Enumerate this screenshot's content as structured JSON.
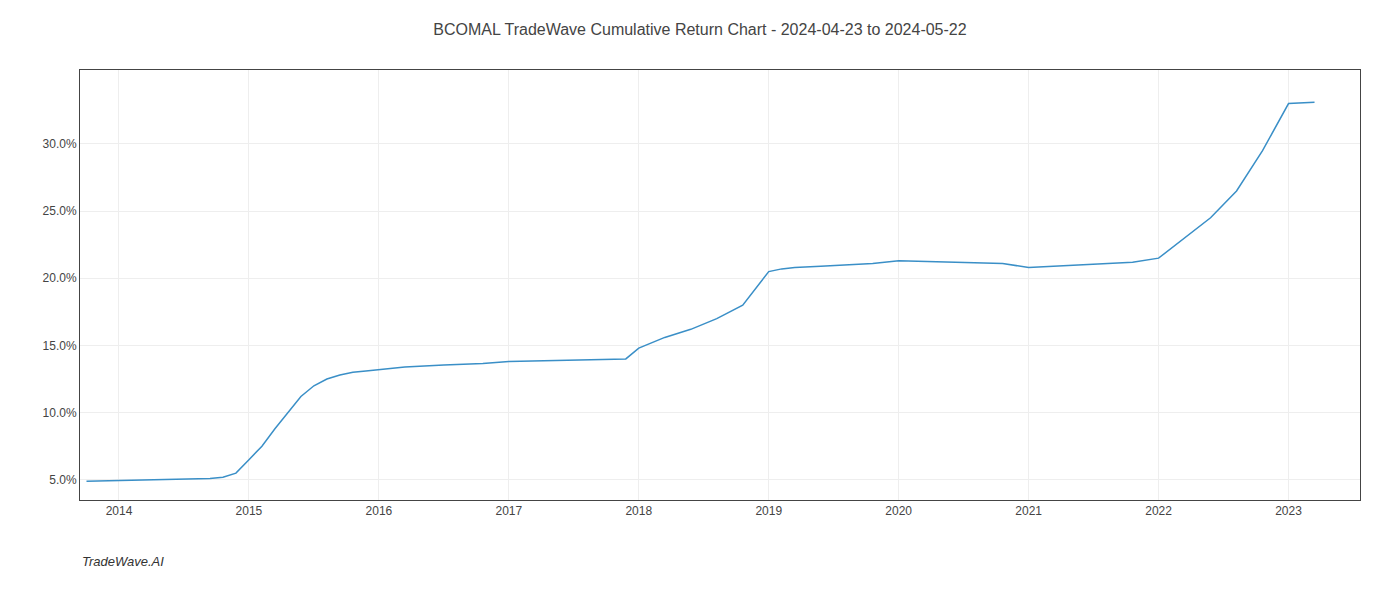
{
  "chart_data": {
    "type": "line",
    "title": "BCOMAL TradeWave Cumulative Return Chart - 2024-04-23 to 2024-05-22",
    "annotations": [
      "TradeWave.AI"
    ],
    "x": [
      2013.75,
      2014.0,
      2014.1,
      2014.2,
      2014.3,
      2014.4,
      2014.5,
      2014.6,
      2014.7,
      2014.8,
      2014.9,
      2015.0,
      2015.1,
      2015.2,
      2015.3,
      2015.4,
      2015.5,
      2015.6,
      2015.7,
      2015.8,
      2015.9,
      2016.0,
      2016.1,
      2016.2,
      2016.5,
      2016.8,
      2017.0,
      2017.3,
      2017.6,
      2017.9,
      2018.0,
      2018.1,
      2018.2,
      2018.4,
      2018.6,
      2018.8,
      2019.0,
      2019.1,
      2019.2,
      2019.4,
      2019.6,
      2019.8,
      2020.0,
      2020.2,
      2020.5,
      2020.8,
      2021.0,
      2021.2,
      2021.4,
      2021.6,
      2021.8,
      2022.0,
      2022.2,
      2022.4,
      2022.6,
      2022.8,
      2023.0,
      2023.2
    ],
    "values": [
      4.9,
      4.95,
      4.97,
      5.0,
      5.0,
      5.02,
      5.05,
      5.08,
      5.1,
      5.2,
      5.5,
      6.5,
      7.5,
      8.8,
      10.0,
      11.2,
      12.0,
      12.5,
      12.8,
      13.0,
      13.1,
      13.2,
      13.3,
      13.4,
      13.55,
      13.65,
      13.8,
      13.85,
      13.9,
      14.0,
      14.8,
      15.2,
      15.6,
      16.2,
      17.0,
      18.0,
      20.5,
      20.7,
      20.8,
      20.9,
      21.0,
      21.1,
      21.3,
      21.25,
      21.2,
      21.1,
      20.8,
      20.9,
      21.0,
      21.1,
      21.2,
      21.5,
      23.0,
      24.5,
      26.5,
      29.5,
      33.0,
      33.1
    ],
    "color": "#3a8fc7",
    "xlim": [
      2013.7,
      2023.55
    ],
    "ylim": [
      3.5,
      35.5
    ],
    "xticks": [
      2014,
      2015,
      2016,
      2017,
      2018,
      2019,
      2020,
      2021,
      2022,
      2023
    ],
    "yticks": [
      {
        "value": 5.0,
        "label": "5.0%"
      },
      {
        "value": 10.0,
        "label": "10.0%"
      },
      {
        "value": 15.0,
        "label": "15.0%"
      },
      {
        "value": 20.0,
        "label": "20.0%"
      },
      {
        "value": 25.0,
        "label": "25.0%"
      },
      {
        "value": 30.0,
        "label": "30.0%"
      }
    ],
    "grid": true
  }
}
